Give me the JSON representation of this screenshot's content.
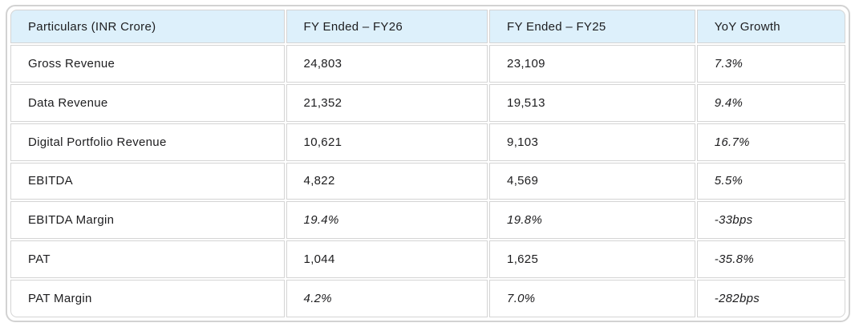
{
  "table": {
    "title_semantic": "financial-results-table",
    "unit_note": "INR Crore",
    "columns": [
      {
        "label": "Particulars (INR Crore)"
      },
      {
        "label": "FY Ended – FY26"
      },
      {
        "label": "FY Ended – FY25"
      },
      {
        "label": "YoY Growth"
      }
    ],
    "rows": [
      {
        "cells": [
          {
            "text": "Gross Revenue",
            "italic": false
          },
          {
            "text": "24,803",
            "italic": false
          },
          {
            "text": "23,109",
            "italic": false
          },
          {
            "text": "7.3%",
            "italic": true
          }
        ]
      },
      {
        "cells": [
          {
            "text": "Data Revenue",
            "italic": false
          },
          {
            "text": "21,352",
            "italic": false
          },
          {
            "text": "19,513",
            "italic": false
          },
          {
            "text": "9.4%",
            "italic": true
          }
        ]
      },
      {
        "cells": [
          {
            "text": "Digital Portfolio Revenue",
            "italic": false
          },
          {
            "text": "10,621",
            "italic": false
          },
          {
            "text": "9,103",
            "italic": false
          },
          {
            "text": "16.7%",
            "italic": true
          }
        ]
      },
      {
        "cells": [
          {
            "text": "EBITDA",
            "italic": false
          },
          {
            "text": "4,822",
            "italic": false
          },
          {
            "text": "4,569",
            "italic": false
          },
          {
            "text": "5.5%",
            "italic": true
          }
        ]
      },
      {
        "cells": [
          {
            "text": "EBITDA Margin",
            "italic": false
          },
          {
            "text": "19.4%",
            "italic": true
          },
          {
            "text": "19.8%",
            "italic": true
          },
          {
            "text": "-33bps",
            "italic": true
          }
        ]
      },
      {
        "cells": [
          {
            "text": "PAT",
            "italic": false
          },
          {
            "text": "1,044",
            "italic": false
          },
          {
            "text": "1,625",
            "italic": false
          },
          {
            "text": "-35.8%",
            "italic": true
          }
        ]
      },
      {
        "cells": [
          {
            "text": "PAT Margin",
            "italic": false
          },
          {
            "text": "4.2%",
            "italic": true
          },
          {
            "text": "7.0%",
            "italic": true
          },
          {
            "text": "-282bps",
            "italic": true
          }
        ]
      }
    ]
  },
  "chart_data": {
    "type": "table",
    "title": "Financial Results (INR Crore)",
    "columns": [
      "Particulars (INR Crore)",
      "FY Ended – FY26",
      "FY Ended – FY25",
      "YoY Growth"
    ],
    "records": [
      {
        "particulars": "Gross Revenue",
        "fy26": 24803,
        "fy25": 23109,
        "yoy_growth": "7.3%"
      },
      {
        "particulars": "Data Revenue",
        "fy26": 21352,
        "fy25": 19513,
        "yoy_growth": "9.4%"
      },
      {
        "particulars": "Digital Portfolio Revenue",
        "fy26": 10621,
        "fy25": 9103,
        "yoy_growth": "16.7%"
      },
      {
        "particulars": "EBITDA",
        "fy26": 4822,
        "fy25": 4569,
        "yoy_growth": "5.5%"
      },
      {
        "particulars": "EBITDA Margin",
        "fy26": "19.4%",
        "fy25": "19.8%",
        "yoy_growth": "-33bps"
      },
      {
        "particulars": "PAT",
        "fy26": 1044,
        "fy25": 1625,
        "yoy_growth": "-35.8%"
      },
      {
        "particulars": "PAT Margin",
        "fy26": "4.2%",
        "fy25": "7.0%",
        "yoy_growth": "-282bps"
      }
    ]
  },
  "colors": {
    "header_bg": "#ddf0fb",
    "cell_border": "#d4d4d4",
    "outer_border": "#d2d2d2",
    "text": "#1d1d1f",
    "row_bg": "#ffffff"
  }
}
